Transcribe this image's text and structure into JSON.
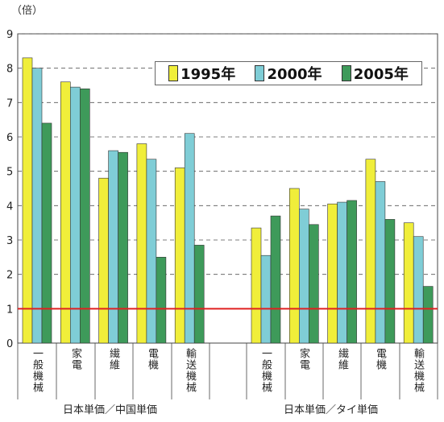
{
  "unit_label": "（倍）",
  "chart_data": {
    "type": "bar",
    "ylim": [
      0,
      9
    ],
    "yticks": [
      0,
      1,
      2,
      3,
      4,
      5,
      6,
      7,
      8,
      9
    ],
    "reference_line": 1,
    "reference_color": "#e02020",
    "grid": true,
    "legend_position": "top-right",
    "series": [
      {
        "name": "1995年",
        "color": "#f0ee3a"
      },
      {
        "name": "2000年",
        "color": "#7fcdd6"
      },
      {
        "name": "2005年",
        "color": "#3e9a5a"
      }
    ],
    "groups": [
      {
        "label": "日本単価／中国単価",
        "categories": [
          {
            "label": "一般機械",
            "values": [
              8.3,
              8.0,
              6.4
            ]
          },
          {
            "label": "家電",
            "values": [
              7.6,
              7.45,
              7.4
            ]
          },
          {
            "label": "繊維",
            "values": [
              4.8,
              5.6,
              5.55
            ]
          },
          {
            "label": "電機",
            "values": [
              5.8,
              5.35,
              2.5
            ]
          },
          {
            "label": "輸送機械",
            "values": [
              5.1,
              6.1,
              2.85
            ]
          }
        ]
      },
      {
        "label": "日本単価／タイ単価",
        "categories": [
          {
            "label": "一般機械",
            "values": [
              3.35,
              2.55,
              3.7
            ]
          },
          {
            "label": "家電",
            "values": [
              4.5,
              3.9,
              3.45
            ]
          },
          {
            "label": "繊維",
            "values": [
              4.05,
              4.1,
              4.15
            ]
          },
          {
            "label": "電機",
            "values": [
              5.35,
              4.7,
              3.6
            ]
          },
          {
            "label": "輸送機械",
            "values": [
              3.5,
              3.1,
              1.65
            ]
          }
        ]
      }
    ]
  }
}
